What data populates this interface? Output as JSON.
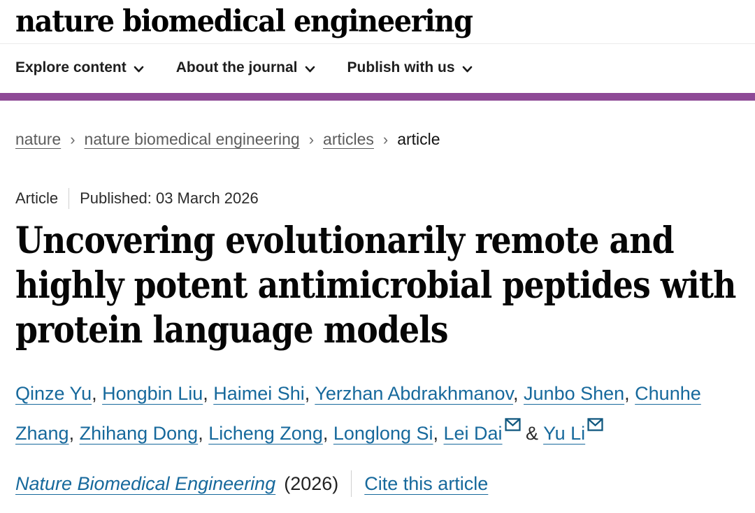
{
  "brand": {
    "purple_bar": "#8e4a96",
    "link_blue": "#17699c",
    "icon_blue": "#11587f"
  },
  "header": {
    "logo": "nature biomedical engineering",
    "nav": [
      {
        "label": "Explore content"
      },
      {
        "label": "About the journal"
      },
      {
        "label": "Publish with us"
      }
    ]
  },
  "breadcrumb": {
    "separator": "›",
    "items": [
      {
        "label": "nature",
        "link": true
      },
      {
        "label": "nature biomedical engineering",
        "link": true
      },
      {
        "label": "articles",
        "link": true
      },
      {
        "label": "article",
        "link": false
      }
    ]
  },
  "meta": {
    "type": "Article",
    "published": "Published: 03 March 2026"
  },
  "title": {
    "full": "Uncovering evolutionarily remote and highly potent antimicrobial peptides with protein language models",
    "lines": [
      "Uncovering evolutionarily remote and",
      "highly potent antimicrobial peptides with",
      "protein language models"
    ]
  },
  "authors": {
    "separator": ", ",
    "last_separator": " & ",
    "list": [
      {
        "name": "Qinze Yu"
      },
      {
        "name": "Hongbin Liu"
      },
      {
        "name": "Haimei Shi"
      },
      {
        "name": "Yerzhan Abdrakhmanov"
      },
      {
        "name": "Junbo Shen"
      },
      {
        "name": "Chunhe Zhang"
      },
      {
        "name": "Zhihang Dong"
      },
      {
        "name": "Licheng Zong"
      },
      {
        "name": "Longlong Si"
      },
      {
        "name": "Lei Dai",
        "email": true
      },
      {
        "name": "Yu Li",
        "email": true
      }
    ]
  },
  "footer": {
    "journal": "Nature Biomedical Engineering",
    "year": "(2026)",
    "cite": "Cite this article"
  }
}
